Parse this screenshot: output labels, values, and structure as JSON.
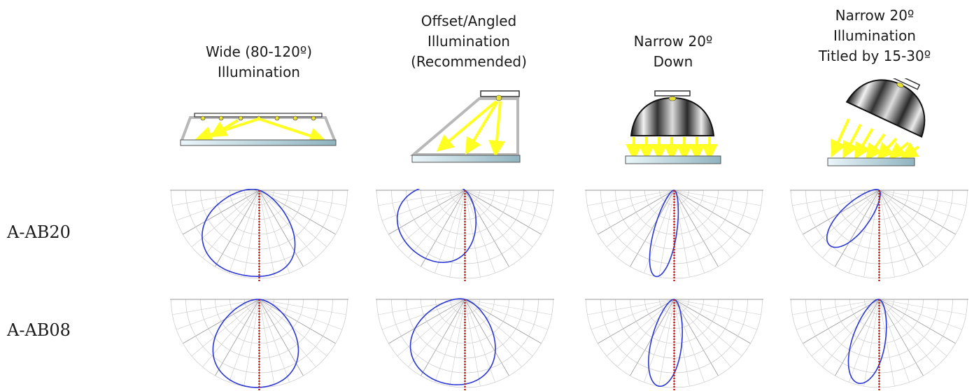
{
  "columns": [
    {
      "id": "wide",
      "lines": [
        "Wide (80-120º)",
        "Illumination"
      ]
    },
    {
      "id": "offset",
      "lines": [
        "Offset/Angled",
        "Illumination",
        "(Recommended)"
      ]
    },
    {
      "id": "narrow-down",
      "lines": [
        "Narrow 20º",
        "Down"
      ]
    },
    {
      "id": "narrow-tilted",
      "lines": [
        "Narrow 20º",
        "Illumination",
        "Titled by 15-30º"
      ]
    }
  ],
  "rows": [
    {
      "label": "A-AB20"
    },
    {
      "label": "A-AB08"
    }
  ],
  "colors": {
    "curve": "#2a36d6",
    "axis": "#cc1111",
    "arrow": "#ffff22",
    "grid": "#c9c9c9"
  }
}
